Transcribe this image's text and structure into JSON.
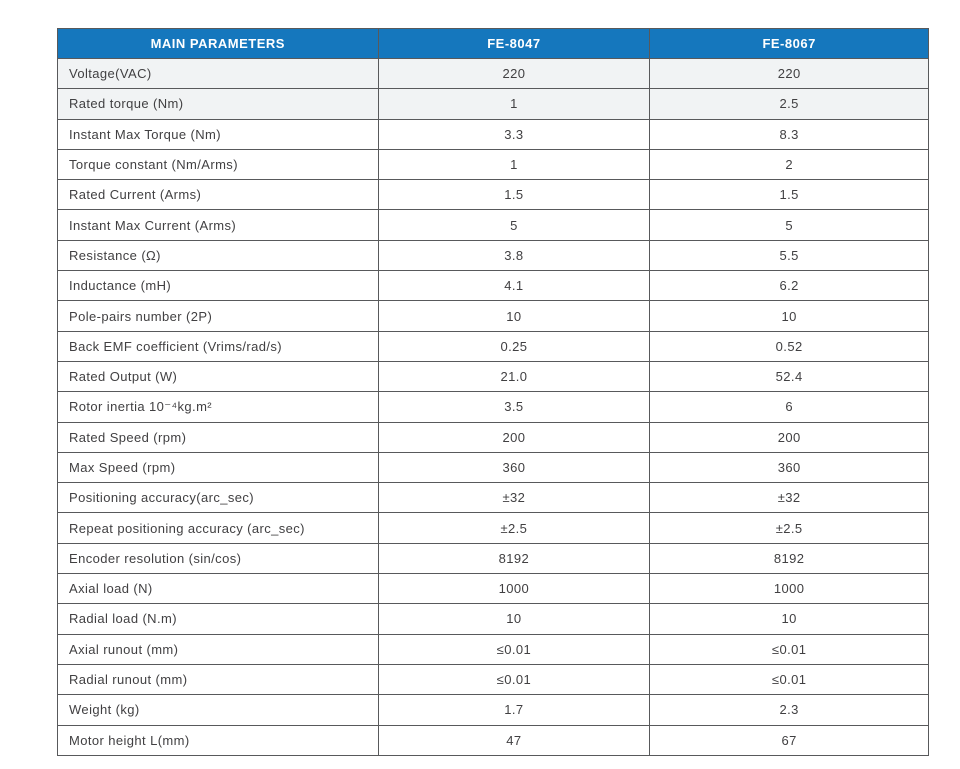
{
  "table": {
    "columns": [
      "MAIN PARAMETERS",
      "FE-8047",
      "FE-8067"
    ],
    "shaded_row_indices": [
      0,
      1
    ],
    "rows": [
      [
        "Voltage(VAC)",
        "220",
        "220"
      ],
      [
        "Rated torque (Nm)",
        "1",
        "2.5"
      ],
      [
        "Instant Max Torque (Nm)",
        "3.3",
        "8.3"
      ],
      [
        "Torque constant (Nm/Arms)",
        "1",
        "2"
      ],
      [
        "Rated Current (Arms)",
        "1.5",
        "1.5"
      ],
      [
        "Instant Max Current (Arms)",
        "5",
        "5"
      ],
      [
        "Resistance (Ω)",
        "3.8",
        "5.5"
      ],
      [
        "Inductance (mH)",
        "4.1",
        "6.2"
      ],
      [
        "Pole-pairs number (2P)",
        "10",
        "10"
      ],
      [
        "Back EMF coefficient (Vrims/rad/s)",
        "0.25",
        "0.52"
      ],
      [
        "Rated Output (W)",
        "21.0",
        "52.4"
      ],
      [
        "Rotor inertia 10⁻⁴kg.m²",
        "3.5",
        "6"
      ],
      [
        "Rated Speed  (rpm)",
        "200",
        "200"
      ],
      [
        "Max Speed (rpm)",
        "360",
        "360"
      ],
      [
        "Positioning accuracy(arc_sec)",
        "±32",
        "±32"
      ],
      [
        "Repeat positioning accuracy (arc_sec)",
        "±2.5",
        "±2.5"
      ],
      [
        "Encoder resolution (sin/cos)",
        "8192",
        "8192"
      ],
      [
        "Axial load (N)",
        "1000",
        "1000"
      ],
      [
        "Radial load (N.m)",
        "10",
        "10"
      ],
      [
        "Axial runout (mm)",
        "≤0.01",
        "≤0.01"
      ],
      [
        "Radial runout (mm)",
        "≤0.01",
        "≤0.01"
      ],
      [
        "Weight (kg)",
        "1.7",
        "2.3"
      ],
      [
        "Motor height  L(mm)",
        "47",
        "67"
      ]
    ]
  },
  "colors": {
    "header_bg": "#1577bd",
    "header_text": "#ffffff",
    "shaded_row_bg": "#f1f3f4",
    "body_text": "#414042",
    "border": "#58595b"
  }
}
